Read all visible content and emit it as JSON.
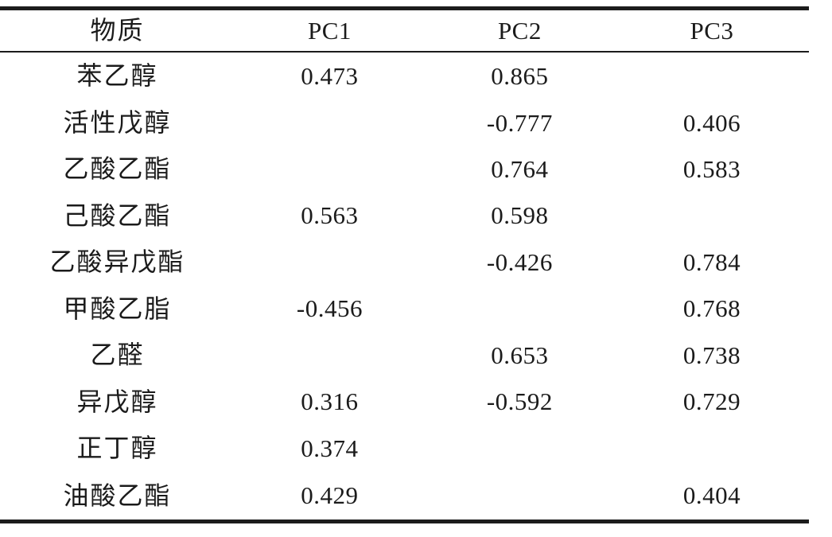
{
  "page": {
    "background_color": "#ffffff",
    "text_color": "#1b1b1b",
    "rule_color": "#1c1c1c"
  },
  "table": {
    "description": "three-line academic table of principal component loadings",
    "columns": [
      {
        "key": "substance",
        "label": "物质"
      },
      {
        "key": "pc1",
        "label": "PC1"
      },
      {
        "key": "pc2",
        "label": "PC2"
      },
      {
        "key": "pc3",
        "label": "PC3"
      }
    ],
    "rows": [
      {
        "substance": "苯乙醇",
        "pc1": "0.473",
        "pc2": "0.865",
        "pc3": ""
      },
      {
        "substance": "活性戊醇",
        "pc1": "",
        "pc2": "-0.777",
        "pc3": "0.406"
      },
      {
        "substance": "乙酸乙酯",
        "pc1": "",
        "pc2": "0.764",
        "pc3": "0.583"
      },
      {
        "substance": "己酸乙酯",
        "pc1": "0.563",
        "pc2": "0.598",
        "pc3": ""
      },
      {
        "substance": "乙酸异戊酯",
        "pc1": "",
        "pc2": "-0.426",
        "pc3": "0.784"
      },
      {
        "substance": "甲酸乙脂",
        "pc1": "-0.456",
        "pc2": "",
        "pc3": "0.768"
      },
      {
        "substance": "乙醛",
        "pc1": "",
        "pc2": "0.653",
        "pc3": "0.738"
      },
      {
        "substance": "异戊醇",
        "pc1": "0.316",
        "pc2": "-0.592",
        "pc3": "0.729"
      },
      {
        "substance": "正丁醇",
        "pc1": "0.374",
        "pc2": "",
        "pc3": ""
      },
      {
        "substance": "油酸乙酯",
        "pc1": "0.429",
        "pc2": "",
        "pc3": "0.404"
      }
    ]
  }
}
